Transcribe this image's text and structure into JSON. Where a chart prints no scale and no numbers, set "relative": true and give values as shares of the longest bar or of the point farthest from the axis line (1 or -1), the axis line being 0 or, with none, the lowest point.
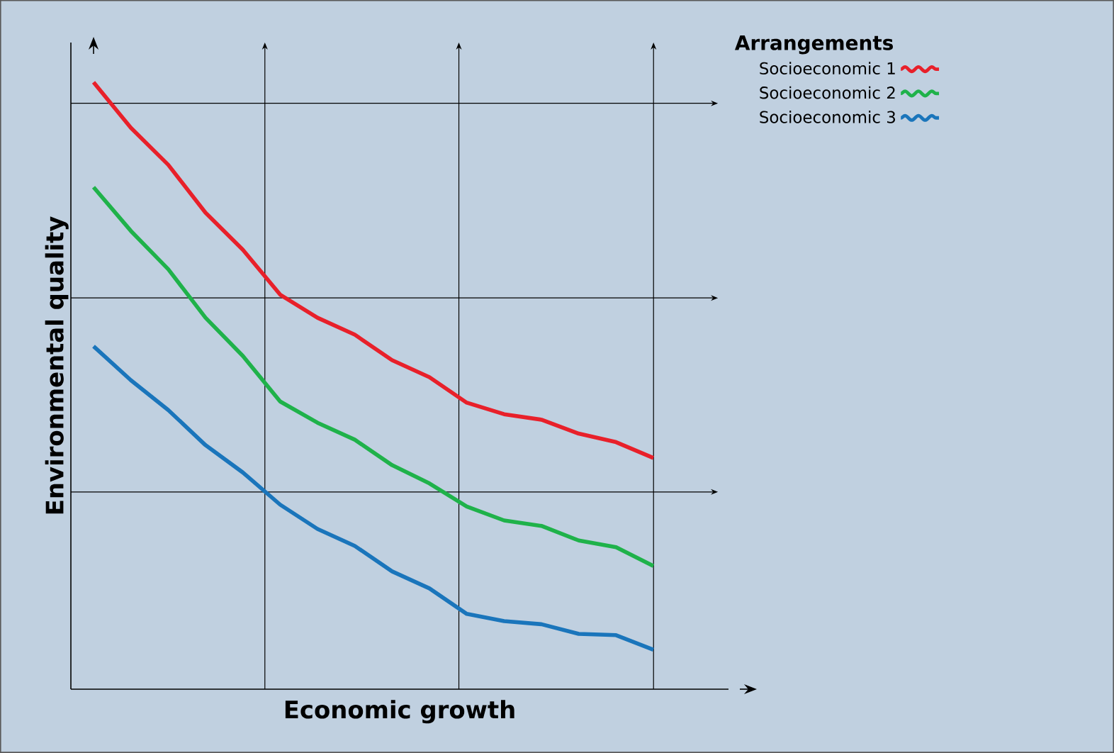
{
  "chart_data": {
    "type": "line",
    "relative": true,
    "xlabel": "Economic growth",
    "ylabel": "Environmental quality",
    "legend_title": "Arrangements",
    "legend": "top right",
    "grid": true,
    "categories": [
      null,
      null,
      null,
      null,
      null,
      null,
      null,
      null,
      null,
      null,
      null,
      null,
      null,
      null,
      null,
      null
    ],
    "series": [
      {
        "name": "Socioeconomic 1",
        "color": "#e8202a",
        "values": [
          1.0,
          0.925,
          0.864,
          0.785,
          0.724,
          0.65,
          0.612,
          0.584,
          0.542,
          0.514,
          0.472,
          0.453,
          0.444,
          0.421,
          0.407,
          0.381
        ]
      },
      {
        "name": "Socioeconomic 2",
        "color": "#1fb24a",
        "values": [
          0.827,
          0.755,
          0.692,
          0.612,
          0.549,
          0.474,
          0.439,
          0.411,
          0.369,
          0.339,
          0.301,
          0.278,
          0.269,
          0.245,
          0.234,
          0.203
        ]
      },
      {
        "name": "Socioeconomic 3",
        "color": "#1a75bb",
        "values": [
          0.565,
          0.509,
          0.46,
          0.402,
          0.357,
          0.304,
          0.264,
          0.236,
          0.194,
          0.166,
          0.124,
          0.112,
          0.107,
          0.091,
          0.089,
          0.065
        ]
      }
    ]
  }
}
